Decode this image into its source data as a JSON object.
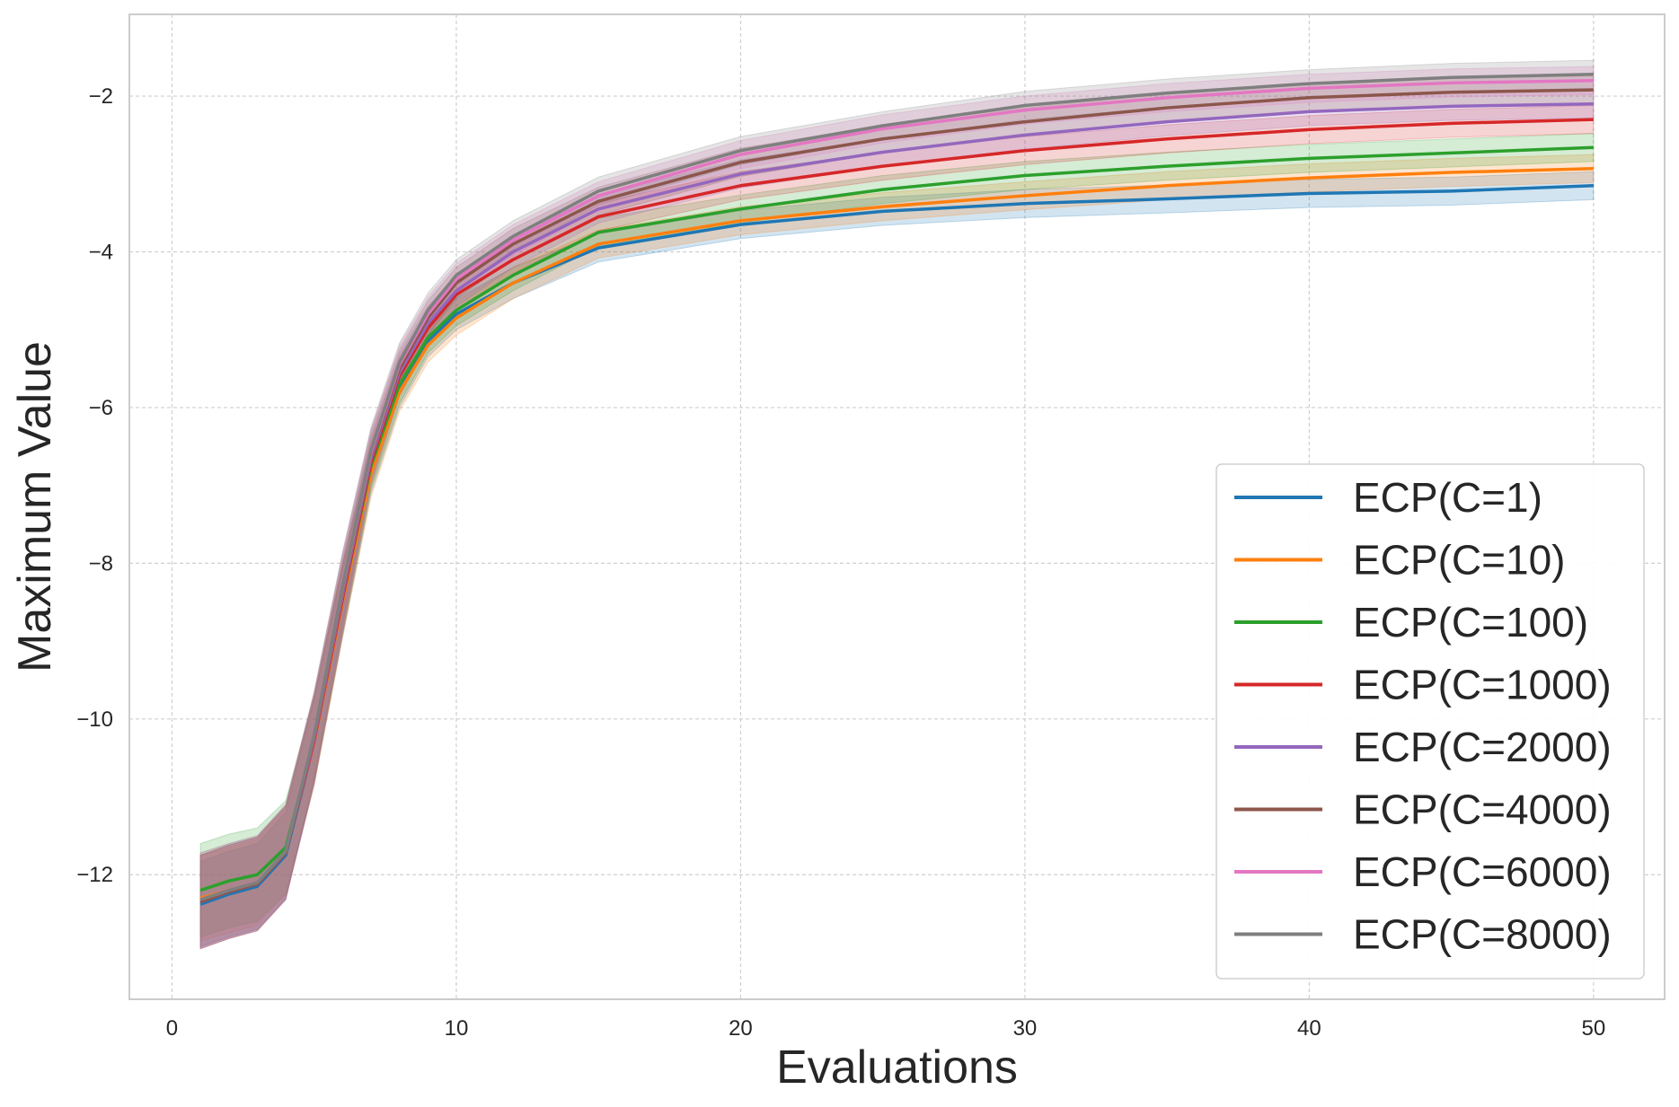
{
  "chart_data": {
    "type": "line",
    "title": "",
    "xlabel": "Evaluations",
    "ylabel": "Maximum Value",
    "xlim": [
      -1.5,
      52.5
    ],
    "ylim": [
      -13.6,
      -0.95
    ],
    "xticks": [
      0,
      10,
      20,
      30,
      40,
      50
    ],
    "xtick_labels": [
      "0",
      "10",
      "20",
      "30",
      "40",
      "50"
    ],
    "yticks": [
      -2,
      -4,
      -6,
      -8,
      -10,
      -12
    ],
    "ytick_labels": [
      "−2",
      "−4",
      "−6",
      "−8",
      "−10",
      "−12"
    ],
    "grid": true,
    "legend_position": "lower-right",
    "band_kind": "shaded confidence band around each mean line",
    "series": [
      {
        "name": "ECP(C=1)",
        "color": "#1f77b4",
        "points": [
          [
            1,
            -12.38
          ],
          [
            2,
            -12.25
          ],
          [
            3,
            -12.15
          ],
          [
            4,
            -11.75
          ],
          [
            5,
            -10.3
          ],
          [
            6,
            -8.5
          ],
          [
            7,
            -6.8
          ],
          [
            8,
            -5.75
          ],
          [
            9,
            -5.15
          ],
          [
            10,
            -4.8
          ],
          [
            12,
            -4.4
          ],
          [
            15,
            -3.95
          ],
          [
            20,
            -3.65
          ],
          [
            25,
            -3.48
          ],
          [
            30,
            -3.38
          ],
          [
            35,
            -3.32
          ],
          [
            40,
            -3.25
          ],
          [
            45,
            -3.22
          ],
          [
            50,
            -3.15
          ]
        ],
        "band": [
          0.55,
          0.55,
          0.55,
          0.55,
          0.55,
          0.45,
          0.3,
          0.25,
          0.2,
          0.2,
          0.2,
          0.18,
          0.18,
          0.18,
          0.18,
          0.18,
          0.18,
          0.18,
          0.18
        ]
      },
      {
        "name": "ECP(C=10)",
        "color": "#ff7f0e",
        "points": [
          [
            1,
            -12.3
          ],
          [
            2,
            -12.2
          ],
          [
            3,
            -12.1
          ],
          [
            4,
            -11.7
          ],
          [
            5,
            -10.3
          ],
          [
            6,
            -8.5
          ],
          [
            7,
            -6.85
          ],
          [
            8,
            -5.8
          ],
          [
            9,
            -5.2
          ],
          [
            10,
            -4.85
          ],
          [
            12,
            -4.4
          ],
          [
            15,
            -3.9
          ],
          [
            20,
            -3.6
          ],
          [
            25,
            -3.42
          ],
          [
            30,
            -3.28
          ],
          [
            35,
            -3.15
          ],
          [
            40,
            -3.05
          ],
          [
            45,
            -2.98
          ],
          [
            50,
            -2.93
          ]
        ],
        "band": [
          0.55,
          0.55,
          0.55,
          0.55,
          0.55,
          0.45,
          0.3,
          0.25,
          0.22,
          0.22,
          0.2,
          0.18,
          0.18,
          0.18,
          0.18,
          0.18,
          0.18,
          0.18,
          0.18
        ]
      },
      {
        "name": "ECP(C=100)",
        "color": "#2ca02c",
        "points": [
          [
            1,
            -12.2
          ],
          [
            2,
            -12.08
          ],
          [
            3,
            -12.0
          ],
          [
            4,
            -11.65
          ],
          [
            5,
            -10.25
          ],
          [
            6,
            -8.45
          ],
          [
            7,
            -6.75
          ],
          [
            8,
            -5.7
          ],
          [
            9,
            -5.1
          ],
          [
            10,
            -4.75
          ],
          [
            12,
            -4.3
          ],
          [
            15,
            -3.75
          ],
          [
            20,
            -3.45
          ],
          [
            25,
            -3.2
          ],
          [
            30,
            -3.02
          ],
          [
            35,
            -2.9
          ],
          [
            40,
            -2.8
          ],
          [
            45,
            -2.73
          ],
          [
            50,
            -2.66
          ]
        ],
        "band": [
          0.6,
          0.6,
          0.6,
          0.6,
          0.55,
          0.45,
          0.3,
          0.25,
          0.2,
          0.2,
          0.2,
          0.18,
          0.18,
          0.18,
          0.18,
          0.18,
          0.18,
          0.18,
          0.18
        ]
      },
      {
        "name": "ECP(C=1000)",
        "color": "#d62728",
        "points": [
          [
            1,
            -12.35
          ],
          [
            2,
            -12.22
          ],
          [
            3,
            -12.12
          ],
          [
            4,
            -11.72
          ],
          [
            5,
            -10.28
          ],
          [
            6,
            -8.45
          ],
          [
            7,
            -6.7
          ],
          [
            8,
            -5.6
          ],
          [
            9,
            -4.98
          ],
          [
            10,
            -4.55
          ],
          [
            12,
            -4.1
          ],
          [
            15,
            -3.55
          ],
          [
            20,
            -3.15
          ],
          [
            25,
            -2.9
          ],
          [
            30,
            -2.7
          ],
          [
            35,
            -2.55
          ],
          [
            40,
            -2.43
          ],
          [
            45,
            -2.35
          ],
          [
            50,
            -2.3
          ]
        ],
        "band": [
          0.6,
          0.6,
          0.6,
          0.6,
          0.55,
          0.45,
          0.3,
          0.25,
          0.22,
          0.2,
          0.2,
          0.18,
          0.18,
          0.18,
          0.18,
          0.18,
          0.18,
          0.18,
          0.18
        ]
      },
      {
        "name": "ECP(C=2000)",
        "color": "#9467bd",
        "points": [
          [
            1,
            -12.35
          ],
          [
            2,
            -12.22
          ],
          [
            3,
            -12.12
          ],
          [
            4,
            -11.72
          ],
          [
            5,
            -10.25
          ],
          [
            6,
            -8.4
          ],
          [
            7,
            -6.65
          ],
          [
            8,
            -5.55
          ],
          [
            9,
            -4.92
          ],
          [
            10,
            -4.5
          ],
          [
            12,
            -4.0
          ],
          [
            15,
            -3.45
          ],
          [
            20,
            -3.0
          ],
          [
            25,
            -2.72
          ],
          [
            30,
            -2.5
          ],
          [
            35,
            -2.33
          ],
          [
            40,
            -2.2
          ],
          [
            45,
            -2.13
          ],
          [
            50,
            -2.1
          ]
        ],
        "band": [
          0.6,
          0.6,
          0.6,
          0.6,
          0.55,
          0.45,
          0.3,
          0.25,
          0.22,
          0.2,
          0.2,
          0.18,
          0.18,
          0.18,
          0.18,
          0.18,
          0.18,
          0.18,
          0.18
        ]
      },
      {
        "name": "ECP(C=4000)",
        "color": "#8c564b",
        "points": [
          [
            1,
            -12.35
          ],
          [
            2,
            -12.22
          ],
          [
            3,
            -12.12
          ],
          [
            4,
            -11.72
          ],
          [
            5,
            -10.22
          ],
          [
            6,
            -8.35
          ],
          [
            7,
            -6.6
          ],
          [
            8,
            -5.5
          ],
          [
            9,
            -4.85
          ],
          [
            10,
            -4.4
          ],
          [
            12,
            -3.9
          ],
          [
            15,
            -3.35
          ],
          [
            20,
            -2.85
          ],
          [
            25,
            -2.55
          ],
          [
            30,
            -2.33
          ],
          [
            35,
            -2.15
          ],
          [
            40,
            -2.02
          ],
          [
            45,
            -1.95
          ],
          [
            50,
            -1.92
          ]
        ],
        "band": [
          0.6,
          0.6,
          0.6,
          0.6,
          0.55,
          0.45,
          0.3,
          0.25,
          0.22,
          0.2,
          0.2,
          0.18,
          0.18,
          0.18,
          0.18,
          0.18,
          0.18,
          0.18,
          0.18
        ]
      },
      {
        "name": "ECP(C=6000)",
        "color": "#e377c2",
        "points": [
          [
            1,
            -12.32
          ],
          [
            2,
            -12.2
          ],
          [
            3,
            -12.1
          ],
          [
            4,
            -11.7
          ],
          [
            5,
            -10.2
          ],
          [
            6,
            -8.32
          ],
          [
            7,
            -6.58
          ],
          [
            8,
            -5.45
          ],
          [
            9,
            -4.8
          ],
          [
            10,
            -4.35
          ],
          [
            12,
            -3.85
          ],
          [
            15,
            -3.28
          ],
          [
            20,
            -2.75
          ],
          [
            25,
            -2.42
          ],
          [
            30,
            -2.18
          ],
          [
            35,
            -2.02
          ],
          [
            40,
            -1.9
          ],
          [
            45,
            -1.83
          ],
          [
            50,
            -1.8
          ]
        ],
        "band": [
          0.6,
          0.6,
          0.6,
          0.6,
          0.55,
          0.45,
          0.3,
          0.25,
          0.22,
          0.2,
          0.2,
          0.18,
          0.18,
          0.18,
          0.18,
          0.18,
          0.18,
          0.18,
          0.18
        ]
      },
      {
        "name": "ECP(C=8000)",
        "color": "#7f7f7f",
        "points": [
          [
            1,
            -12.32
          ],
          [
            2,
            -12.2
          ],
          [
            3,
            -12.1
          ],
          [
            4,
            -11.7
          ],
          [
            5,
            -10.2
          ],
          [
            6,
            -8.3
          ],
          [
            7,
            -6.55
          ],
          [
            8,
            -5.42
          ],
          [
            9,
            -4.75
          ],
          [
            10,
            -4.3
          ],
          [
            12,
            -3.8
          ],
          [
            15,
            -3.22
          ],
          [
            20,
            -2.7
          ],
          [
            25,
            -2.38
          ],
          [
            30,
            -2.12
          ],
          [
            35,
            -1.96
          ],
          [
            40,
            -1.84
          ],
          [
            45,
            -1.76
          ],
          [
            50,
            -1.72
          ]
        ],
        "band": [
          0.6,
          0.6,
          0.6,
          0.6,
          0.55,
          0.45,
          0.3,
          0.25,
          0.22,
          0.2,
          0.2,
          0.18,
          0.18,
          0.18,
          0.18,
          0.18,
          0.18,
          0.18,
          0.18
        ]
      }
    ]
  }
}
